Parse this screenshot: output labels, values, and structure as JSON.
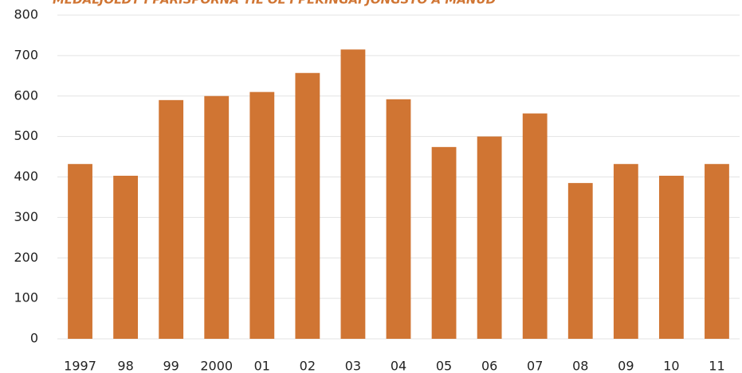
{
  "chart_data": {
    "type": "bar",
    "title": "MEDALJOLDT I PARISPORNA TIL OL I PEKINGAFJONGSTO A MANUD",
    "categories": [
      "1997",
      "98",
      "99",
      "2000",
      "01",
      "02",
      "03",
      "04",
      "05",
      "06",
      "07",
      "08",
      "09",
      "10",
      "11"
    ],
    "values": [
      432,
      403,
      590,
      600,
      610,
      657,
      715,
      592,
      474,
      500,
      557,
      385,
      432,
      403,
      432
    ],
    "color": "#d07533",
    "ylim": [
      0,
      800
    ],
    "yticks": [
      0,
      100,
      200,
      300,
      400,
      500,
      600,
      700,
      800
    ],
    "grid": true
  }
}
